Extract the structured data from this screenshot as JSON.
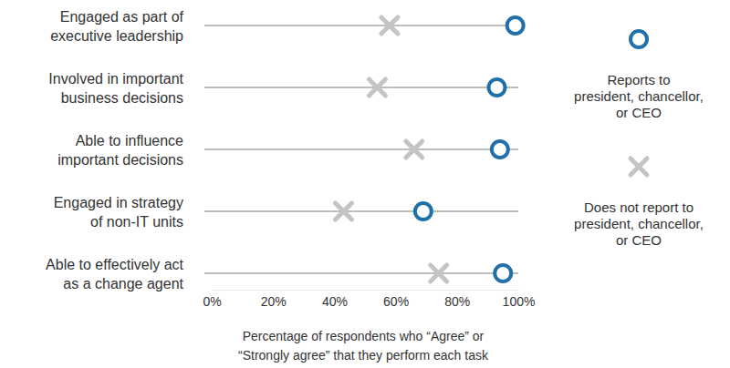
{
  "chart_data": {
    "type": "dot",
    "orientation": "horizontal",
    "categories": [
      "Engaged as part of\nexecutive leadership",
      "Involved in important\nbusiness decisions",
      "Able to influence\nimportant decisions",
      "Engaged in strategy\nof non-IT units",
      "Able to effectively act\nas a change agent"
    ],
    "series": [
      {
        "name": "Reports to\npresident, chancellor,\nor CEO",
        "color": "#2270a9",
        "marker": "circle",
        "values": [
          99,
          93,
          94,
          69,
          95
        ]
      },
      {
        "name": "Does not report to\npresident, chancellor,\nor CEO",
        "color": "#c4c4c4",
        "marker": "x",
        "values": [
          58,
          54,
          66,
          43,
          74
        ]
      }
    ],
    "xlabel": "Percentage of respondents who “Agree” or\n“Strongly agree” that they perform each task",
    "xlim": [
      0,
      100
    ],
    "xticks": [
      {
        "value": 0,
        "label": "0%"
      },
      {
        "value": 20,
        "label": "20%"
      },
      {
        "value": 40,
        "label": "40%"
      },
      {
        "value": 60,
        "label": "60%"
      },
      {
        "value": 80,
        "label": "80%"
      },
      {
        "value": 100,
        "label": "100%"
      }
    ],
    "legend": "right",
    "grid": false
  }
}
